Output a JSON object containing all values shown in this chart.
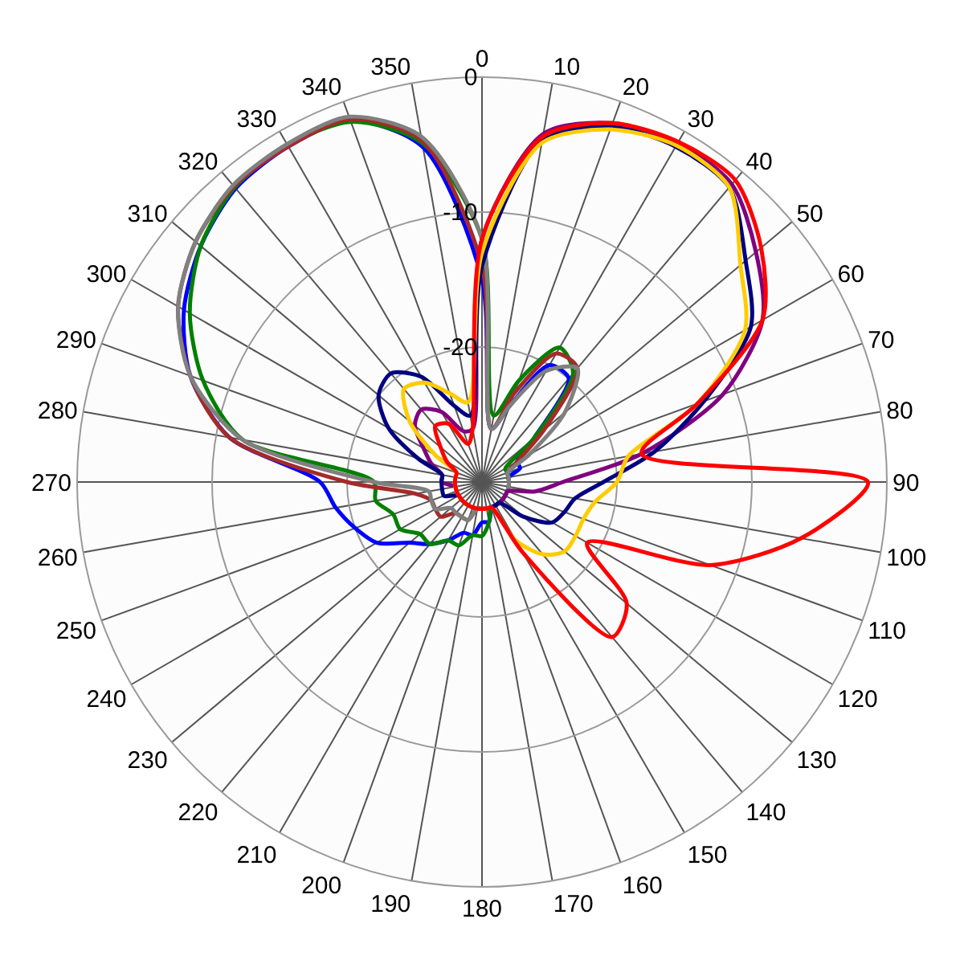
{
  "chart_data": {
    "type": "radar",
    "categories": [
      "0",
      "10",
      "20",
      "30",
      "40",
      "50",
      "60",
      "70",
      "80",
      "90",
      "100",
      "110",
      "120",
      "130",
      "140",
      "150",
      "160",
      "170",
      "180",
      "190",
      "200",
      "210",
      "220",
      "230",
      "240",
      "250",
      "260",
      "270",
      "280",
      "290",
      "300",
      "310",
      "320",
      "330",
      "340",
      "350"
    ],
    "ylim": [
      -30,
      0
    ],
    "yticks": [
      0,
      -10,
      -20
    ],
    "grid": true,
    "marker": "none",
    "line_style": "solid",
    "series": [
      {
        "color": "#0000ff",
        "values": [
          -15,
          -26,
          -24,
          -20,
          -20,
          -25,
          -27,
          -27,
          -28,
          -28,
          -28,
          -28,
          -28,
          -28,
          -28,
          -28,
          -28,
          -27,
          -27,
          -26,
          -26,
          -25,
          -24,
          -23,
          -21,
          -20,
          -19,
          -18,
          -11,
          -7,
          -4.5,
          -2.8,
          -1.6,
          -1.3,
          -1.5,
          -4.8
        ]
      },
      {
        "color": "#008000",
        "values": [
          -12,
          -25,
          -22,
          -18.5,
          -19.5,
          -25,
          -28,
          -28,
          -28,
          -28,
          -28,
          -28,
          -28,
          -28,
          -28,
          -28,
          -28,
          -27,
          -26,
          -26,
          -25,
          -25,
          -24,
          -24,
          -23,
          -23,
          -22,
          -22,
          -12,
          -8,
          -5,
          -2.8,
          -1.5,
          -1.2,
          -1.6,
          -4.5
        ]
      },
      {
        "color": "#a52a2a",
        "values": [
          -14,
          -26,
          -23,
          -19,
          -19,
          -24,
          -27,
          -28,
          -28,
          -28,
          -28,
          -28,
          -28,
          -28,
          -28,
          -28,
          -28,
          -28,
          -28,
          -28,
          -27,
          -27,
          -27,
          -26,
          -26,
          -26,
          -25,
          -20,
          -11,
          -7,
          -4,
          -2.3,
          -1.4,
          -1.3,
          -1.4,
          -4.3
        ]
      },
      {
        "color": "#808080",
        "values": [
          -12,
          -26,
          -24,
          -20.5,
          -19,
          -22,
          -26,
          -28,
          -28,
          -28,
          -28,
          -28,
          -28,
          -28,
          -28,
          -28,
          -28,
          -28,
          -28,
          -28,
          -27,
          -27,
          -27,
          -27,
          -26,
          -26,
          -26,
          -22,
          -12,
          -7,
          -4,
          -2.3,
          -1.3,
          -1.1,
          -1.2,
          -4
        ]
      },
      {
        "color": "#800080",
        "values": [
          -12,
          -3.8,
          -1.7,
          -1,
          -1.2,
          -3.5,
          -6,
          -11,
          -18,
          -24,
          -26,
          -28,
          -28,
          -28,
          -28,
          -28,
          -28,
          -28,
          -28,
          -28,
          -28,
          -28,
          -28,
          -28,
          -28,
          -28,
          -28,
          -27,
          -27,
          -26,
          -25,
          -23.5,
          -23,
          -24,
          -26,
          -26
        ]
      },
      {
        "color": "#000080",
        "values": [
          -14,
          -4.3,
          -2,
          -1.3,
          -1.5,
          -4.5,
          -7,
          -12.5,
          -17,
          -21,
          -23,
          -23.5,
          -24,
          -26,
          -28,
          -28,
          -28,
          -28,
          -28,
          -28,
          -28,
          -28,
          -28,
          -28,
          -28,
          -27,
          -27,
          -27,
          -27,
          -25,
          -22,
          -20,
          -19.5,
          -21,
          -24,
          -25
        ]
      },
      {
        "color": "#ffcc00",
        "values": [
          -13,
          -4.5,
          -2.2,
          -1.2,
          -1.5,
          -5,
          -7.5,
          -13,
          -19,
          -20,
          -21.5,
          -22,
          -22,
          -22,
          -23,
          -25,
          -28,
          -28,
          -28,
          -28,
          -28,
          -28,
          -28,
          -28,
          -28,
          -28,
          -28,
          -28,
          -28,
          -28,
          -26,
          -23,
          -21,
          -21.5,
          -23,
          -24
        ]
      },
      {
        "color": "#ff0000",
        "values": [
          -12,
          -4,
          -1.7,
          -0.9,
          -0.8,
          -3,
          -6,
          -13,
          -18,
          -1.4,
          -6,
          -12,
          -21,
          -16,
          -15,
          -24,
          -28,
          -28,
          -28,
          -28,
          -28,
          -28,
          -28,
          -28,
          -28,
          -28,
          -28,
          -28,
          -28,
          -28,
          -27,
          -26,
          -24.6,
          -25,
          -27,
          -26
        ]
      }
    ]
  }
}
